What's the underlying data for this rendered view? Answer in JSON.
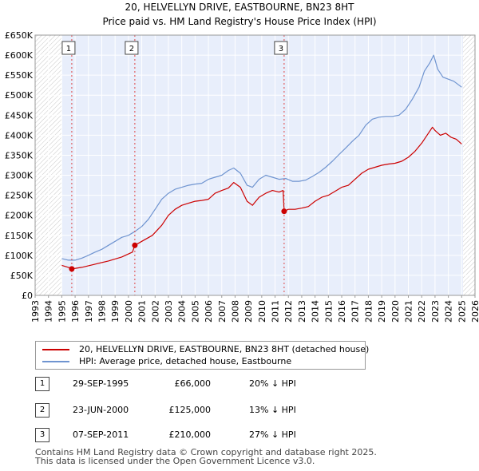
{
  "title_line1": "20, HELVELLYN DRIVE, EASTBOURNE, BN23 8HT",
  "title_line2": "Price paid vs. HM Land Registry's House Price Index (HPI)",
  "colors": {
    "property": "#cc0000",
    "hpi": "#6f94d0",
    "shade": "#e8eefb"
  },
  "chart_data": {
    "type": "line",
    "ylim": [
      0,
      650000
    ],
    "yticks": [
      0,
      50000,
      100000,
      150000,
      200000,
      250000,
      300000,
      350000,
      400000,
      450000,
      500000,
      550000,
      600000,
      650000
    ],
    "ytick_labels": [
      "£0",
      "£50K",
      "£100K",
      "£150K",
      "£200K",
      "£250K",
      "£300K",
      "£350K",
      "£400K",
      "£450K",
      "£500K",
      "£550K",
      "£600K",
      "£650K"
    ],
    "xlim": [
      1993.0,
      2026.0
    ],
    "xticks": [
      1993,
      1994,
      1995,
      1996,
      1997,
      1998,
      1999,
      2000,
      2001,
      2002,
      2003,
      2004,
      2005,
      2006,
      2007,
      2008,
      2009,
      2010,
      2011,
      2012,
      2013,
      2014,
      2015,
      2016,
      2017,
      2018,
      2019,
      2020,
      2021,
      2022,
      2023,
      2024,
      2025,
      2026
    ],
    "shaded_ranges": [
      [
        1995.0,
        2025.1
      ]
    ],
    "hatched_ranges": [
      [
        1993.0,
        1995.0
      ],
      [
        2025.1,
        2026.0
      ]
    ],
    "series": [
      {
        "name": "20, HELVELLYN DRIVE, EASTBOURNE, BN23 8HT (detached house)",
        "x": [
          1995.0,
          1995.5,
          1995.75,
          1996.5,
          1997.5,
          1998.5,
          1999.5,
          2000.3,
          2000.48,
          2001.0,
          2001.8,
          2002.5,
          2003.0,
          2003.5,
          2004.0,
          2004.5,
          2005.0,
          2005.5,
          2006.0,
          2006.5,
          2007.0,
          2007.5,
          2007.9,
          2008.4,
          2008.9,
          2009.3,
          2009.8,
          2010.3,
          2010.8,
          2011.3,
          2011.6,
          2011.68,
          2012.0,
          2012.5,
          2013.0,
          2013.5,
          2014.0,
          2014.5,
          2015.0,
          2015.5,
          2016.0,
          2016.5,
          2017.0,
          2017.5,
          2018.0,
          2018.5,
          2019.0,
          2019.5,
          2020.0,
          2020.5,
          2021.0,
          2021.5,
          2022.0,
          2022.4,
          2022.8,
          2023.0,
          2023.4,
          2023.8,
          2024.2,
          2024.6,
          2025.0
        ],
        "y": [
          75000,
          70000,
          66000,
          70000,
          78000,
          86000,
          96000,
          108000,
          125000,
          135000,
          150000,
          175000,
          200000,
          215000,
          225000,
          230000,
          235000,
          237000,
          240000,
          255000,
          262000,
          268000,
          282000,
          270000,
          235000,
          225000,
          245000,
          255000,
          262000,
          258000,
          262000,
          210000,
          215000,
          215000,
          218000,
          222000,
          235000,
          245000,
          250000,
          260000,
          270000,
          275000,
          290000,
          305000,
          315000,
          320000,
          325000,
          328000,
          330000,
          335000,
          345000,
          360000,
          380000,
          400000,
          420000,
          412000,
          400000,
          405000,
          395000,
          390000,
          378000
        ]
      },
      {
        "name": "HPI: Average price, detached house, Eastbourne",
        "x": [
          1995.0,
          1995.5,
          1996.0,
          1996.5,
          1997.0,
          1997.5,
          1998.0,
          1998.5,
          1999.0,
          1999.5,
          2000.0,
          2000.5,
          2001.0,
          2001.5,
          2002.0,
          2002.5,
          2003.0,
          2003.5,
          2004.0,
          2004.5,
          2005.0,
          2005.5,
          2006.0,
          2006.5,
          2007.0,
          2007.5,
          2007.9,
          2008.4,
          2008.9,
          2009.3,
          2009.8,
          2010.3,
          2010.8,
          2011.3,
          2011.8,
          2012.3,
          2012.8,
          2013.3,
          2013.8,
          2014.3,
          2014.8,
          2015.3,
          2015.8,
          2016.3,
          2016.8,
          2017.3,
          2017.8,
          2018.3,
          2018.8,
          2019.3,
          2019.8,
          2020.3,
          2020.8,
          2021.3,
          2021.8,
          2022.2,
          2022.6,
          2022.9,
          2023.2,
          2023.6,
          2024.0,
          2024.4,
          2024.8,
          2025.0
        ],
        "y": [
          92000,
          88000,
          88000,
          93000,
          100000,
          108000,
          115000,
          125000,
          135000,
          145000,
          150000,
          160000,
          172000,
          190000,
          215000,
          240000,
          255000,
          265000,
          270000,
          275000,
          278000,
          280000,
          290000,
          295000,
          300000,
          312000,
          318000,
          305000,
          275000,
          270000,
          290000,
          300000,
          295000,
          290000,
          292000,
          285000,
          285000,
          288000,
          297000,
          307000,
          320000,
          335000,
          352000,
          368000,
          385000,
          400000,
          425000,
          440000,
          445000,
          447000,
          447000,
          450000,
          465000,
          490000,
          520000,
          560000,
          580000,
          600000,
          565000,
          545000,
          540000,
          535000,
          525000,
          520000
        ]
      }
    ],
    "sale_markers": [
      {
        "label": "1",
        "x": 1995.75,
        "y": 66000
      },
      {
        "label": "2",
        "x": 2000.48,
        "y": 125000
      },
      {
        "label": "3",
        "x": 2011.68,
        "y": 210000
      }
    ]
  },
  "legend": {
    "property_label": "20, HELVELLYN DRIVE, EASTBOURNE, BN23 8HT (detached house)",
    "hpi_label": "HPI: Average price, detached house, Eastbourne"
  },
  "sales": [
    {
      "num": "1",
      "date": "29-SEP-1995",
      "price": "£66,000",
      "hpi": "20% ↓ HPI"
    },
    {
      "num": "2",
      "date": "23-JUN-2000",
      "price": "£125,000",
      "hpi": "13% ↓ HPI"
    },
    {
      "num": "3",
      "date": "07-SEP-2011",
      "price": "£210,000",
      "hpi": "27% ↓ HPI"
    }
  ],
  "footer_line1": "Contains HM Land Registry data © Crown copyright and database right 2025.",
  "footer_line2": "This data is licensed under the Open Government Licence v3.0."
}
